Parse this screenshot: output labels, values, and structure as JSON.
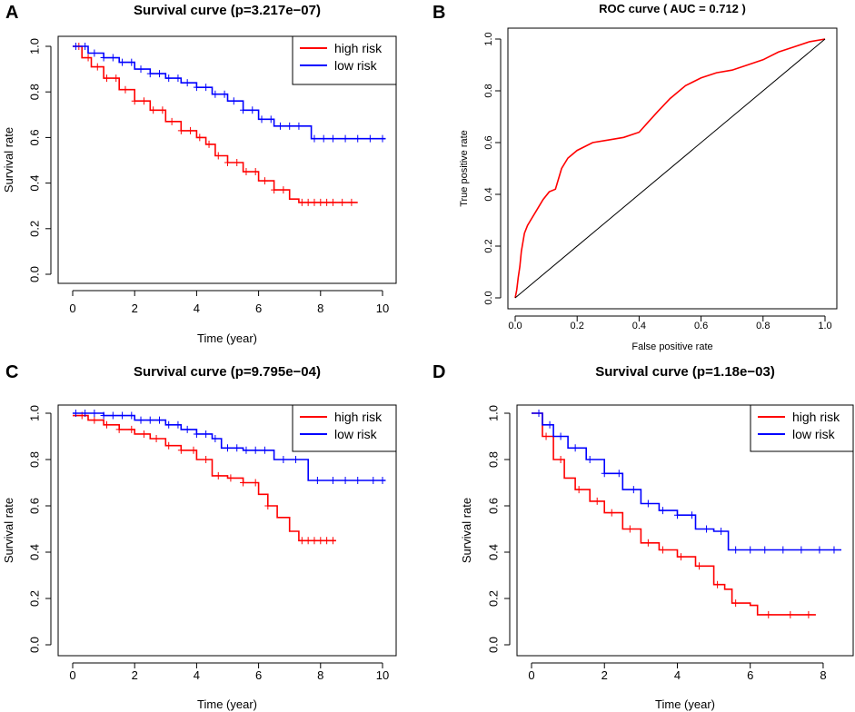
{
  "chart_data": [
    {
      "panel": "A",
      "type": "line",
      "title": "Survival curve (p=3.217e−07)",
      "xlabel": "Time (year)",
      "ylabel": "Survival rate",
      "xlim": [
        0,
        10
      ],
      "ylim": [
        0,
        1
      ],
      "xticks": [
        "0",
        "2",
        "4",
        "6",
        "8",
        "10"
      ],
      "yticks": [
        "0.0",
        "0.2",
        "0.4",
        "0.6",
        "0.8",
        "1.0"
      ],
      "legend": {
        "position": "top-right",
        "entries": [
          "high risk",
          "low risk"
        ]
      },
      "series": [
        {
          "name": "high risk",
          "color": "#ff0000",
          "x": [
            0,
            0.3,
            0.6,
            1.0,
            1.5,
            2.0,
            2.5,
            3.0,
            3.5,
            4.0,
            4.3,
            4.6,
            5.0,
            5.5,
            6.0,
            6.5,
            7.0,
            7.3,
            8.0,
            9.2
          ],
          "y": [
            1.0,
            0.95,
            0.91,
            0.86,
            0.81,
            0.76,
            0.72,
            0.67,
            0.63,
            0.6,
            0.57,
            0.52,
            0.49,
            0.45,
            0.41,
            0.37,
            0.33,
            0.315,
            0.315,
            0.315
          ],
          "censor_x": [
            0.2,
            0.5,
            0.8,
            1.1,
            1.4,
            1.7,
            2.0,
            2.3,
            2.6,
            2.9,
            3.2,
            3.5,
            3.8,
            4.1,
            4.4,
            4.7,
            5.0,
            5.3,
            5.6,
            5.9,
            6.2,
            6.5,
            6.8,
            7.4,
            7.6,
            7.8,
            8.0,
            8.2,
            8.4,
            8.7,
            9.0
          ]
        },
        {
          "name": "low risk",
          "color": "#0000ff",
          "x": [
            0,
            0.5,
            1.0,
            1.5,
            2.0,
            2.5,
            3.0,
            3.5,
            4.0,
            4.5,
            5.0,
            5.5,
            6.0,
            6.5,
            7.0,
            7.5,
            7.7,
            8.0,
            10.1
          ],
          "y": [
            1.0,
            0.97,
            0.95,
            0.93,
            0.9,
            0.88,
            0.86,
            0.84,
            0.82,
            0.79,
            0.76,
            0.72,
            0.68,
            0.65,
            0.65,
            0.65,
            0.595,
            0.595,
            0.595
          ],
          "censor_x": [
            0.1,
            0.4,
            0.7,
            1.0,
            1.3,
            1.6,
            1.9,
            2.2,
            2.5,
            2.8,
            3.1,
            3.4,
            3.7,
            4.0,
            4.3,
            4.6,
            4.9,
            5.2,
            5.5,
            5.8,
            6.1,
            6.4,
            6.7,
            7.0,
            7.3,
            7.8,
            8.1,
            8.4,
            8.8,
            9.2,
            9.6,
            10.0
          ]
        }
      ]
    },
    {
      "panel": "B",
      "type": "line",
      "title": "ROC curve ( AUC =  0.712 )",
      "xlabel": "False positive rate",
      "ylabel": "True positive rate",
      "xlim": [
        0,
        1
      ],
      "ylim": [
        0,
        1
      ],
      "xticks": [
        "0.0",
        "0.2",
        "0.4",
        "0.6",
        "0.8",
        "1.0"
      ],
      "yticks": [
        "0.0",
        "0.2",
        "0.4",
        "0.6",
        "0.8",
        "1.0"
      ],
      "series": [
        {
          "name": "ROC",
          "color": "#ff0000",
          "x": [
            0,
            0.005,
            0.01,
            0.015,
            0.02,
            0.03,
            0.04,
            0.05,
            0.07,
            0.09,
            0.11,
            0.13,
            0.15,
            0.17,
            0.2,
            0.25,
            0.3,
            0.35,
            0.4,
            0.43,
            0.46,
            0.5,
            0.55,
            0.6,
            0.65,
            0.7,
            0.75,
            0.8,
            0.85,
            0.9,
            0.95,
            1.0
          ],
          "y": [
            0,
            0.03,
            0.08,
            0.12,
            0.18,
            0.25,
            0.28,
            0.3,
            0.34,
            0.38,
            0.41,
            0.42,
            0.5,
            0.54,
            0.57,
            0.6,
            0.61,
            0.62,
            0.64,
            0.68,
            0.72,
            0.77,
            0.82,
            0.85,
            0.87,
            0.88,
            0.9,
            0.92,
            0.95,
            0.97,
            0.99,
            1.0
          ]
        },
        {
          "name": "diagonal",
          "color": "#000000",
          "x": [
            0,
            1
          ],
          "y": [
            0,
            1
          ]
        }
      ]
    },
    {
      "panel": "C",
      "type": "line",
      "title": "Survival curve (p=9.795e−04)",
      "xlabel": "Time (year)",
      "ylabel": "Survival rate",
      "xlim": [
        0,
        10
      ],
      "ylim": [
        0,
        1
      ],
      "xticks": [
        "0",
        "2",
        "4",
        "6",
        "8",
        "10"
      ],
      "yticks": [
        "0.0",
        "0.2",
        "0.4",
        "0.6",
        "0.8",
        "1.0"
      ],
      "legend": {
        "position": "top-right",
        "entries": [
          "high risk",
          "low risk"
        ]
      },
      "series": [
        {
          "name": "high risk",
          "color": "#ff0000",
          "x": [
            0,
            0.5,
            1.0,
            1.5,
            2.0,
            2.5,
            3.0,
            3.5,
            4.0,
            4.5,
            5.0,
            5.5,
            6.0,
            6.3,
            6.6,
            7.0,
            7.3,
            8.5
          ],
          "y": [
            0.99,
            0.97,
            0.95,
            0.93,
            0.91,
            0.89,
            0.86,
            0.84,
            0.8,
            0.73,
            0.72,
            0.7,
            0.65,
            0.6,
            0.55,
            0.49,
            0.45,
            0.45
          ],
          "censor_x": [
            0.3,
            0.7,
            1.1,
            1.5,
            1.9,
            2.3,
            2.7,
            3.1,
            3.5,
            3.9,
            4.3,
            4.7,
            5.1,
            5.5,
            5.9,
            6.3,
            7.4,
            7.6,
            7.8,
            8.0,
            8.2,
            8.4
          ]
        },
        {
          "name": "low risk",
          "color": "#0000ff",
          "x": [
            0,
            1.0,
            2.0,
            3.0,
            3.5,
            4.0,
            4.5,
            4.8,
            5.5,
            6.0,
            6.5,
            7.0,
            7.6,
            10.1
          ],
          "y": [
            1.0,
            0.99,
            0.97,
            0.95,
            0.93,
            0.91,
            0.89,
            0.85,
            0.84,
            0.84,
            0.8,
            0.8,
            0.71,
            0.71
          ],
          "censor_x": [
            0.1,
            0.4,
            0.7,
            1.0,
            1.3,
            1.6,
            1.9,
            2.2,
            2.5,
            2.8,
            3.1,
            3.4,
            3.7,
            4.0,
            4.3,
            4.6,
            5.0,
            5.3,
            5.6,
            5.9,
            6.2,
            6.8,
            7.2,
            7.9,
            8.4,
            8.8,
            9.2,
            9.7,
            10.0
          ]
        }
      ]
    },
    {
      "panel": "D",
      "type": "line",
      "title": "Survival curve (p=1.18e−03)",
      "xlabel": "Time (year)",
      "ylabel": "Survival rate",
      "xlim": [
        0,
        8.5
      ],
      "ylim": [
        0,
        1
      ],
      "xticks": [
        "0",
        "2",
        "4",
        "6",
        "8"
      ],
      "yticks": [
        "0.0",
        "0.2",
        "0.4",
        "0.6",
        "0.8",
        "1.0"
      ],
      "legend": {
        "position": "top-right",
        "entries": [
          "high risk",
          "low risk"
        ]
      },
      "series": [
        {
          "name": "high risk",
          "color": "#ff0000",
          "x": [
            0,
            0.3,
            0.6,
            0.9,
            1.2,
            1.6,
            2.0,
            2.5,
            3.0,
            3.5,
            4.0,
            4.5,
            5.0,
            5.3,
            5.5,
            6.0,
            6.2,
            7.8
          ],
          "y": [
            1.0,
            0.9,
            0.8,
            0.72,
            0.67,
            0.62,
            0.57,
            0.5,
            0.44,
            0.41,
            0.38,
            0.34,
            0.26,
            0.24,
            0.18,
            0.17,
            0.13,
            0.13
          ],
          "censor_x": [
            0.4,
            0.8,
            1.3,
            1.8,
            2.2,
            2.7,
            3.2,
            3.6,
            4.1,
            4.6,
            5.1,
            5.6,
            6.5,
            7.1,
            7.6
          ]
        },
        {
          "name": "low risk",
          "color": "#0000ff",
          "x": [
            0,
            0.3,
            0.6,
            1.0,
            1.5,
            2.0,
            2.5,
            3.0,
            3.5,
            4.0,
            4.5,
            5.0,
            5.3,
            5.4,
            8.5
          ],
          "y": [
            1.0,
            0.95,
            0.9,
            0.85,
            0.8,
            0.74,
            0.67,
            0.61,
            0.58,
            0.56,
            0.5,
            0.49,
            0.49,
            0.41,
            0.41
          ],
          "censor_x": [
            0.2,
            0.5,
            0.8,
            1.2,
            1.6,
            2.0,
            2.4,
            2.8,
            3.2,
            3.6,
            4.0,
            4.4,
            4.8,
            5.2,
            5.6,
            6.0,
            6.4,
            6.9,
            7.4,
            7.9,
            8.3
          ]
        }
      ]
    }
  ]
}
